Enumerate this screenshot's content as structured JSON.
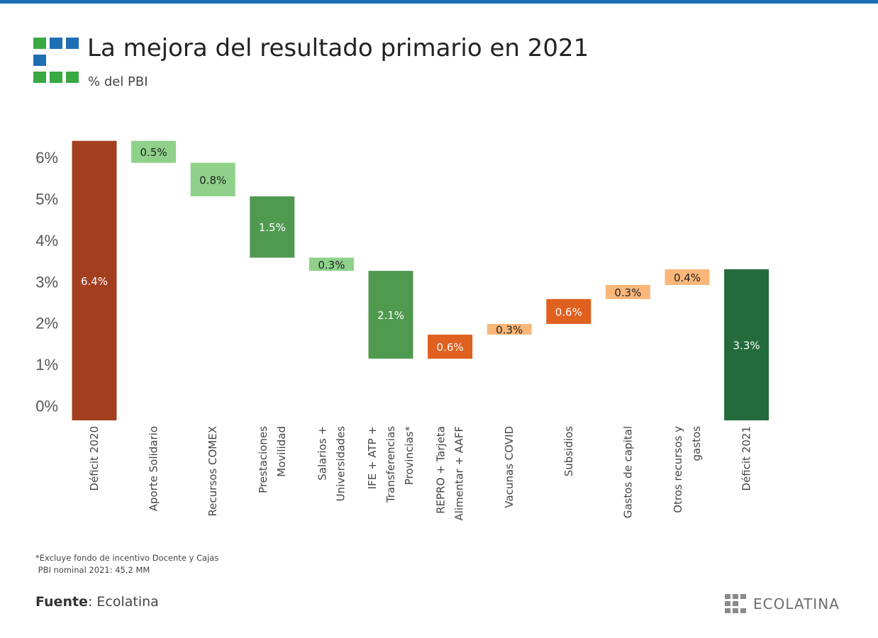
{
  "header": {
    "title": "La mejora del resultado primario en 2021",
    "subtitle": "% del PBI"
  },
  "notes": {
    "line1": "*Excluye fondo de incentivo Docente y Cajas",
    "line2": " PBI nominal 2021: 45,2 MM"
  },
  "source": {
    "label": "Fuente",
    "value": ": Ecolatina"
  },
  "brand": {
    "name": "ECOLATINA",
    "icon": "ecolatina-grid-logo"
  },
  "colors": {
    "total_red": "#a33f1f",
    "total_green": "#236b3b",
    "light_green": "#8fd18a",
    "mid_green": "#4f9a4f",
    "orange": "#e0601f",
    "light_orange": "#fbb77a",
    "logo_green": "#3aa843",
    "logo_blue": "#1f6fb3"
  },
  "chart_data": {
    "type": "waterfall",
    "title": "La mejora del resultado primario en 2021",
    "subtitle": "% del PBI",
    "xlabel": "",
    "ylabel": "",
    "ylim": [
      -0.35,
      6.6
    ],
    "yticks": [
      "0%",
      "1%",
      "2%",
      "3%",
      "4%",
      "5%",
      "6%"
    ],
    "ytick_values": [
      0,
      1,
      2,
      3,
      4,
      5,
      6
    ],
    "grid": false,
    "legend": "none",
    "categories": [
      [
        "Déficit 2020"
      ],
      [
        "Aporte Solidario"
      ],
      [
        "Recursos COMEX"
      ],
      [
        "Prestaciones",
        "Movilidad"
      ],
      [
        "Salarios +",
        "Universidades"
      ],
      [
        "IFE + ATP +",
        "Transferencias",
        "Provincias*"
      ],
      [
        "REPRO + Tarjeta",
        "Alimentar + AAFF"
      ],
      [
        "Vacunas COVID"
      ],
      [
        "Subsidios"
      ],
      [
        "Gastos de capital"
      ],
      [
        "Otros recursos y",
        "gastos"
      ],
      [
        "Déficit 2021"
      ]
    ],
    "bars": [
      {
        "low": -0.35,
        "high": 6.4,
        "label": "6.4%",
        "color": "#a33f1f",
        "label_color": "#ffffff"
      },
      {
        "low": 5.87,
        "high": 6.4,
        "label": "0.5%",
        "color": "#8fd18a",
        "label_color": "#222222"
      },
      {
        "low": 5.06,
        "high": 5.87,
        "label": "0.8%",
        "color": "#8fd18a",
        "label_color": "#222222"
      },
      {
        "low": 3.58,
        "high": 5.06,
        "label": "1.5%",
        "color": "#4f9a4f",
        "label_color": "#ffffff"
      },
      {
        "low": 3.26,
        "high": 3.58,
        "label": "0.3%",
        "color": "#8fd18a",
        "label_color": "#222222"
      },
      {
        "low": 1.14,
        "high": 3.26,
        "label": "2.1%",
        "color": "#4f9a4f",
        "label_color": "#ffffff"
      },
      {
        "low": 1.14,
        "high": 1.72,
        "label": "0.6%",
        "color": "#e0601f",
        "label_color": "#ffffff"
      },
      {
        "low": 1.72,
        "high": 1.98,
        "label": "0.3%",
        "color": "#fbb77a",
        "label_color": "#222222"
      },
      {
        "low": 1.98,
        "high": 2.58,
        "label": "0.6%",
        "color": "#e0601f",
        "label_color": "#ffffff"
      },
      {
        "low": 2.58,
        "high": 2.92,
        "label": "0.3%",
        "color": "#fbb77a",
        "label_color": "#222222"
      },
      {
        "low": 2.92,
        "high": 3.3,
        "label": "0.4%",
        "color": "#fbb77a",
        "label_color": "#222222"
      },
      {
        "low": -0.35,
        "high": 3.3,
        "label": "3.3%",
        "color": "#236b3b",
        "label_color": "#ffffff"
      }
    ]
  }
}
